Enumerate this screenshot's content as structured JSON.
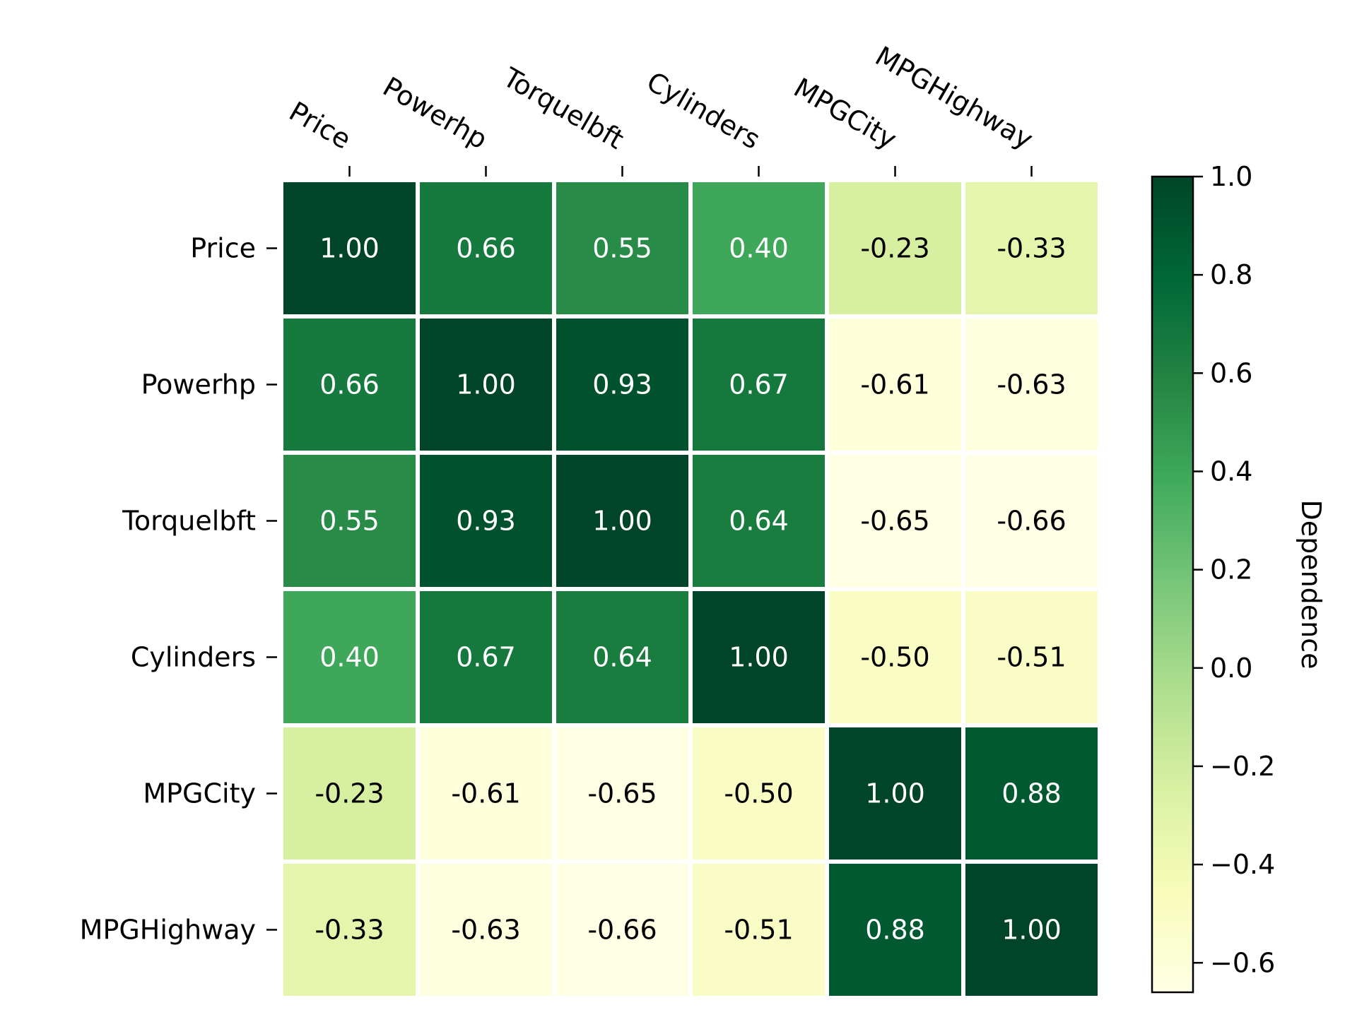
{
  "chart_data": {
    "type": "heatmap",
    "x_categories": [
      "Price",
      "Powerhp",
      "Torquelbft",
      "Cylinders",
      "MPGCity",
      "MPGHighway"
    ],
    "y_categories": [
      "Price",
      "Powerhp",
      "Torquelbft",
      "Cylinders",
      "MPGCity",
      "MPGHighway"
    ],
    "values": [
      [
        1.0,
        0.66,
        0.55,
        0.4,
        -0.23,
        -0.33
      ],
      [
        0.66,
        1.0,
        0.93,
        0.67,
        -0.61,
        -0.63
      ],
      [
        0.55,
        0.93,
        1.0,
        0.64,
        -0.65,
        -0.66
      ],
      [
        0.4,
        0.67,
        0.64,
        1.0,
        -0.5,
        -0.51
      ],
      [
        -0.23,
        -0.61,
        -0.65,
        -0.5,
        1.0,
        0.88
      ],
      [
        -0.33,
        -0.63,
        -0.66,
        -0.51,
        0.88,
        1.0
      ]
    ],
    "cell_labels": [
      [
        "1.00",
        "0.66",
        "0.55",
        "0.40",
        "-0.23",
        "-0.33"
      ],
      [
        "0.66",
        "1.00",
        "0.93",
        "0.67",
        "-0.61",
        "-0.63"
      ],
      [
        "0.55",
        "0.93",
        "1.00",
        "0.64",
        "-0.65",
        "-0.66"
      ],
      [
        "0.40",
        "0.67",
        "0.64",
        "1.00",
        "-0.50",
        "-0.51"
      ],
      [
        "-0.23",
        "-0.61",
        "-0.65",
        "-0.50",
        "1.00",
        "0.88"
      ],
      [
        "-0.33",
        "-0.63",
        "-0.66",
        "-0.51",
        "0.88",
        "1.00"
      ]
    ],
    "colorbar": {
      "label": "Dependence",
      "range": [
        -0.66,
        1.0
      ],
      "ticks": [
        1.0,
        0.8,
        0.6,
        0.4,
        0.2,
        0.0,
        -0.2,
        -0.4,
        -0.6
      ],
      "tick_labels": [
        "1.0",
        "0.8",
        "0.6",
        "0.4",
        "0.2",
        "0.0",
        "−0.2",
        "−0.4",
        "−0.6"
      ]
    },
    "colormap": "YlGn",
    "colormap_stops": [
      "#ffffe5",
      "#f7fcb9",
      "#d9f0a3",
      "#addd8e",
      "#78c679",
      "#41ab5d",
      "#238443",
      "#006837",
      "#004529"
    ],
    "x_tick_position": "top",
    "x_label_rotation_deg": -30,
    "cell_gap_color": "#ffffff"
  }
}
